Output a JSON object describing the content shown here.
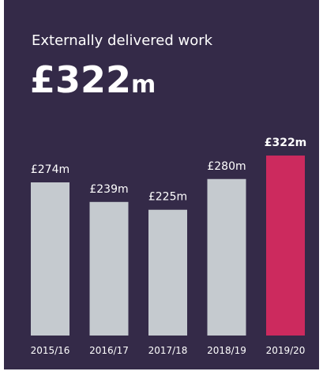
{
  "chart_data": {
    "type": "bar",
    "title": "Externally delivered work",
    "headline": {
      "value": "£322",
      "unit": "m"
    },
    "categories": [
      "2015/16",
      "2016/17",
      "2017/18",
      "2018/19",
      "2019/20"
    ],
    "values": [
      274,
      239,
      225,
      280,
      322
    ],
    "value_labels": [
      "£274m",
      "£239m",
      "£225m",
      "£280m",
      "£322m"
    ],
    "colors": [
      "#c5cacf",
      "#c5cacf",
      "#c5cacf",
      "#c5cacf",
      "#cc2a5e"
    ]
  }
}
